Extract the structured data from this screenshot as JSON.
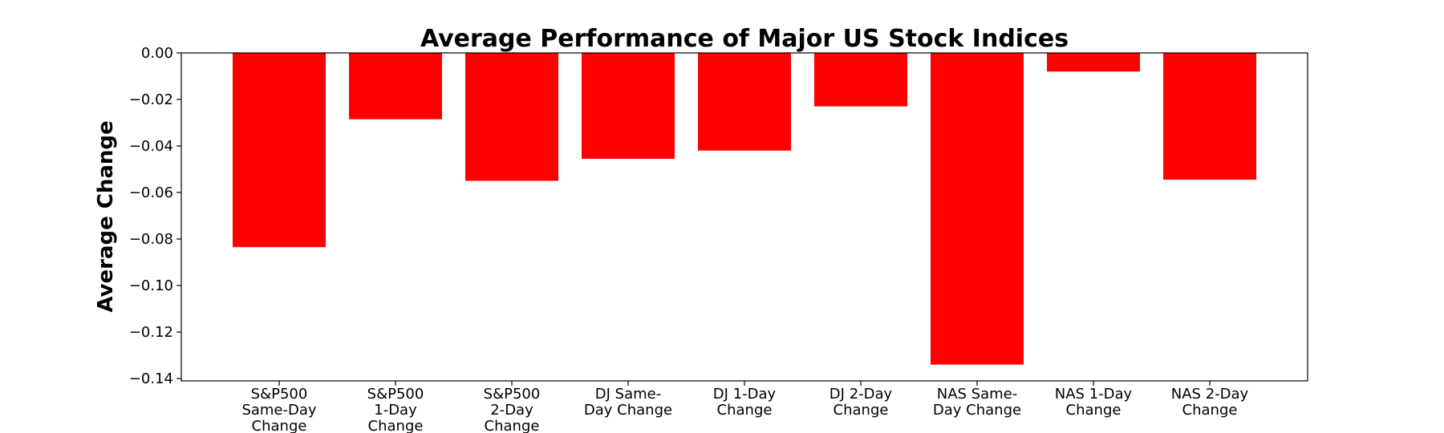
{
  "chart_data": {
    "type": "bar",
    "title": "Average Performance of Major US Stock Indices",
    "xlabel": "",
    "ylabel": "Average Change",
    "ylim": [
      -0.141,
      0.0
    ],
    "yticks": [
      "0.00",
      "−0.02",
      "−0.04",
      "−0.06",
      "−0.08",
      "−0.10",
      "−0.12",
      "−0.14"
    ],
    "ytick_values": [
      0.0,
      -0.02,
      -0.04,
      -0.06,
      -0.08,
      -0.1,
      -0.12,
      -0.14
    ],
    "categories": [
      [
        "S&P500",
        "Same-Day",
        "Change"
      ],
      [
        "S&P500",
        "1-Day",
        "Change"
      ],
      [
        "S&P500",
        "2-Day",
        "Change"
      ],
      [
        "DJ Same-",
        "Day Change"
      ],
      [
        "DJ 1-Day",
        "Change"
      ],
      [
        "DJ 2-Day",
        "Change"
      ],
      [
        "NAS Same-",
        "Day Change"
      ],
      [
        "NAS 1-Day",
        "Change"
      ],
      [
        "NAS 2-Day",
        "Change"
      ]
    ],
    "values": [
      -0.0835,
      -0.0285,
      -0.055,
      -0.0455,
      -0.042,
      -0.023,
      -0.134,
      -0.008,
      -0.0545
    ],
    "bar_color": "#ff0000",
    "grid": false,
    "legend": "none"
  }
}
